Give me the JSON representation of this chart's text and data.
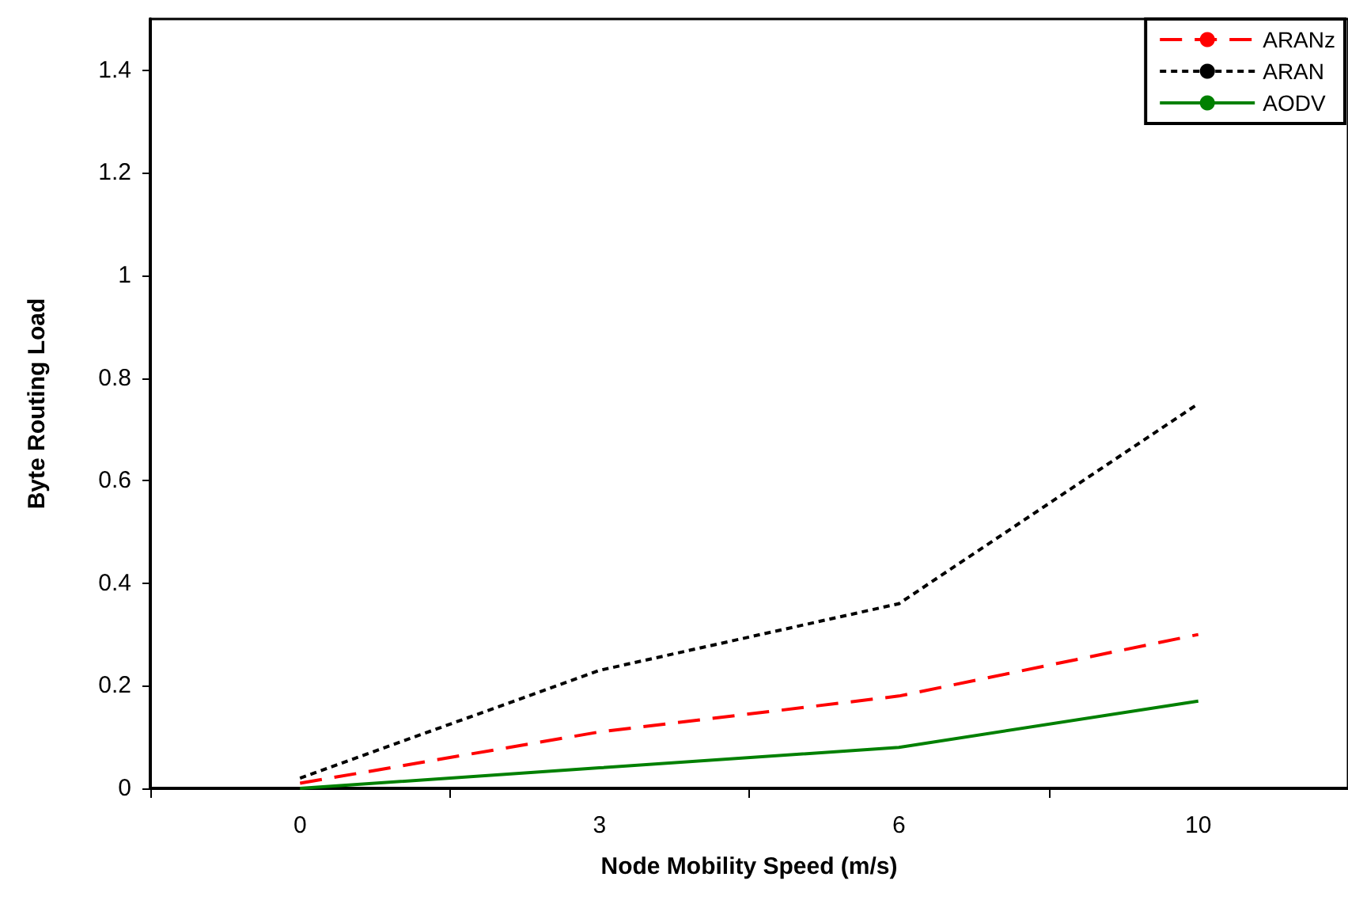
{
  "chart_data": {
    "type": "line",
    "xlabel": "Node Mobility Speed (m/s)",
    "ylabel": "Byte Routing Load",
    "categories": [
      "0",
      "3",
      "6",
      "10"
    ],
    "series": [
      {
        "name": "ARANz",
        "color": "#ff0000",
        "line_style": "dashed",
        "values": [
          0.01,
          0.11,
          0.18,
          0.3
        ]
      },
      {
        "name": "ARAN",
        "color": "#000000",
        "line_style": "dotted",
        "values": [
          0.02,
          0.23,
          0.36,
          0.75
        ]
      },
      {
        "name": "AODV",
        "color": "#008000",
        "line_style": "solid",
        "values": [
          0,
          0.04,
          0.08,
          0.17
        ]
      }
    ],
    "ylim": [
      0,
      1.5
    ],
    "yticks": [
      0,
      0.2,
      0.4,
      0.6,
      0.8,
      1,
      1.2,
      1.4
    ],
    "grid": false,
    "legend": "top right",
    "marker": "none"
  }
}
